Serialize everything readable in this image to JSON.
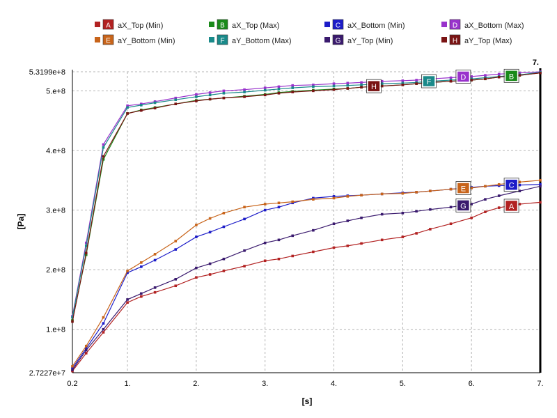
{
  "chart_data": {
    "type": "line",
    "xlabel": "[s]",
    "ylabel": "[Pa]",
    "xlim": [
      0.2,
      7.0
    ],
    "ylim": [
      27227000,
      531990000
    ],
    "x_ticks": [
      {
        "value": 0.2,
        "label": "0.2"
      },
      {
        "value": 1.0,
        "label": "1."
      },
      {
        "value": 2.0,
        "label": "2."
      },
      {
        "value": 3.0,
        "label": "3."
      },
      {
        "value": 4.0,
        "label": "4."
      },
      {
        "value": 5.0,
        "label": "5."
      },
      {
        "value": 6.0,
        "label": "6."
      },
      {
        "value": 7.0,
        "label": "7."
      }
    ],
    "y_ticks": [
      {
        "value": 27227000,
        "label": "2.7227e+7"
      },
      {
        "value": 100000000,
        "label": "1.e+8"
      },
      {
        "value": 200000000,
        "label": "2.e+8"
      },
      {
        "value": 300000000,
        "label": "3.e+8"
      },
      {
        "value": 400000000,
        "label": "4.e+8"
      },
      {
        "value": 500000000,
        "label": "5.e+8"
      },
      {
        "value": 531990000,
        "label": "5.3199e+8"
      }
    ],
    "cursor": {
      "x": 7.0,
      "label": "7."
    },
    "grid": true,
    "legend_position": "top",
    "x": [
      0.2,
      0.4,
      0.65,
      1.0,
      1.2,
      1.4,
      1.7,
      2.0,
      2.2,
      2.4,
      2.7,
      3.0,
      3.2,
      3.4,
      3.7,
      4.0,
      4.2,
      4.4,
      4.7,
      5.0,
      5.2,
      5.4,
      5.7,
      6.0,
      6.2,
      6.4,
      6.7,
      7.0
    ],
    "series": [
      {
        "name": "aX_Top (Min)",
        "tag": "A",
        "color": "#b22222",
        "values": [
          30000000,
          60000000,
          95000000,
          145000000,
          155000000,
          162000000,
          173000000,
          187000000,
          192000000,
          198000000,
          206000000,
          215000000,
          218000000,
          223000000,
          230000000,
          237000000,
          240000000,
          244000000,
          250000000,
          255000000,
          261000000,
          268000000,
          277000000,
          287000000,
          297000000,
          304000000,
          310000000,
          313000000
        ],
        "marker": 6.5
      },
      {
        "name": "aX_Top (Max)",
        "tag": "B",
        "color": "#1a8a1a",
        "values": [
          115000000,
          225000000,
          385000000,
          462000000,
          468000000,
          472000000,
          478000000,
          484000000,
          486000000,
          488000000,
          491000000,
          494000000,
          497000000,
          499000000,
          501000000,
          503000000,
          504000000,
          506000000,
          508000000,
          510000000,
          512000000,
          514000000,
          516000000,
          518000000,
          520000000,
          523000000,
          526000000,
          530000000
        ],
        "marker": 6.5
      },
      {
        "name": "aX_Bottom (Min)",
        "tag": "C",
        "color": "#1c1cc8",
        "values": [
          35000000,
          68000000,
          110000000,
          195000000,
          205000000,
          216000000,
          234000000,
          255000000,
          263000000,
          272000000,
          285000000,
          300000000,
          305000000,
          312000000,
          320000000,
          323000000,
          324000000,
          325000000,
          327000000,
          329000000,
          330000000,
          332000000,
          335000000,
          338000000,
          340000000,
          341000000,
          342000000,
          343000000
        ],
        "marker": 6.5
      },
      {
        "name": "aX_Bottom (Max)",
        "tag": "D",
        "color": "#9932cc",
        "values": [
          122000000,
          245000000,
          410000000,
          475000000,
          478000000,
          482000000,
          488000000,
          494000000,
          497000000,
          500000000,
          502000000,
          505000000,
          507000000,
          509000000,
          510000000,
          512000000,
          513000000,
          514000000,
          516000000,
          517000000,
          518000000,
          520000000,
          522000000,
          524000000,
          526000000,
          528000000,
          530000000,
          532000000
        ],
        "marker": 5.8
      },
      {
        "name": "aY_Bottom (Min)",
        "tag": "E",
        "color": "#c8641a",
        "values": [
          38000000,
          72000000,
          120000000,
          198000000,
          212000000,
          226000000,
          248000000,
          275000000,
          286000000,
          295000000,
          305000000,
          310000000,
          312000000,
          314000000,
          318000000,
          320000000,
          323000000,
          325000000,
          327000000,
          328000000,
          330000000,
          332000000,
          335000000,
          337000000,
          340000000,
          343000000,
          347000000,
          350000000
        ],
        "marker": 5.8
      },
      {
        "name": "aY_Bottom (Max)",
        "tag": "F",
        "color": "#1a8a8a",
        "values": [
          120000000,
          240000000,
          405000000,
          472000000,
          476000000,
          480000000,
          485000000,
          490000000,
          493000000,
          496000000,
          498000000,
          501000000,
          503000000,
          505000000,
          507000000,
          508000000,
          509000000,
          510000000,
          512000000,
          513000000,
          514000000,
          516000000,
          518000000,
          520000000,
          522000000,
          524000000,
          527000000,
          531000000
        ],
        "marker": 5.3
      },
      {
        "name": "aY_Top (Min)",
        "tag": "G",
        "color": "#3a1a6e",
        "values": [
          32000000,
          65000000,
          100000000,
          150000000,
          160000000,
          170000000,
          184000000,
          203000000,
          210000000,
          218000000,
          232000000,
          245000000,
          250000000,
          257000000,
          266000000,
          277000000,
          282000000,
          287000000,
          293000000,
          295000000,
          298000000,
          301000000,
          305000000,
          310000000,
          318000000,
          324000000,
          332000000,
          340000000
        ],
        "marker": 5.8
      },
      {
        "name": "aY_Top (Max)",
        "tag": "H",
        "color": "#7a1414",
        "values": [
          113000000,
          228000000,
          390000000,
          462000000,
          467000000,
          471000000,
          478000000,
          483000000,
          486000000,
          488000000,
          490000000,
          493000000,
          496000000,
          498000000,
          500000000,
          502000000,
          504000000,
          506000000,
          508000000,
          510000000,
          512000000,
          514000000,
          516000000,
          518000000,
          520000000,
          523000000,
          526000000,
          530000000
        ],
        "marker": 4.5
      }
    ]
  }
}
